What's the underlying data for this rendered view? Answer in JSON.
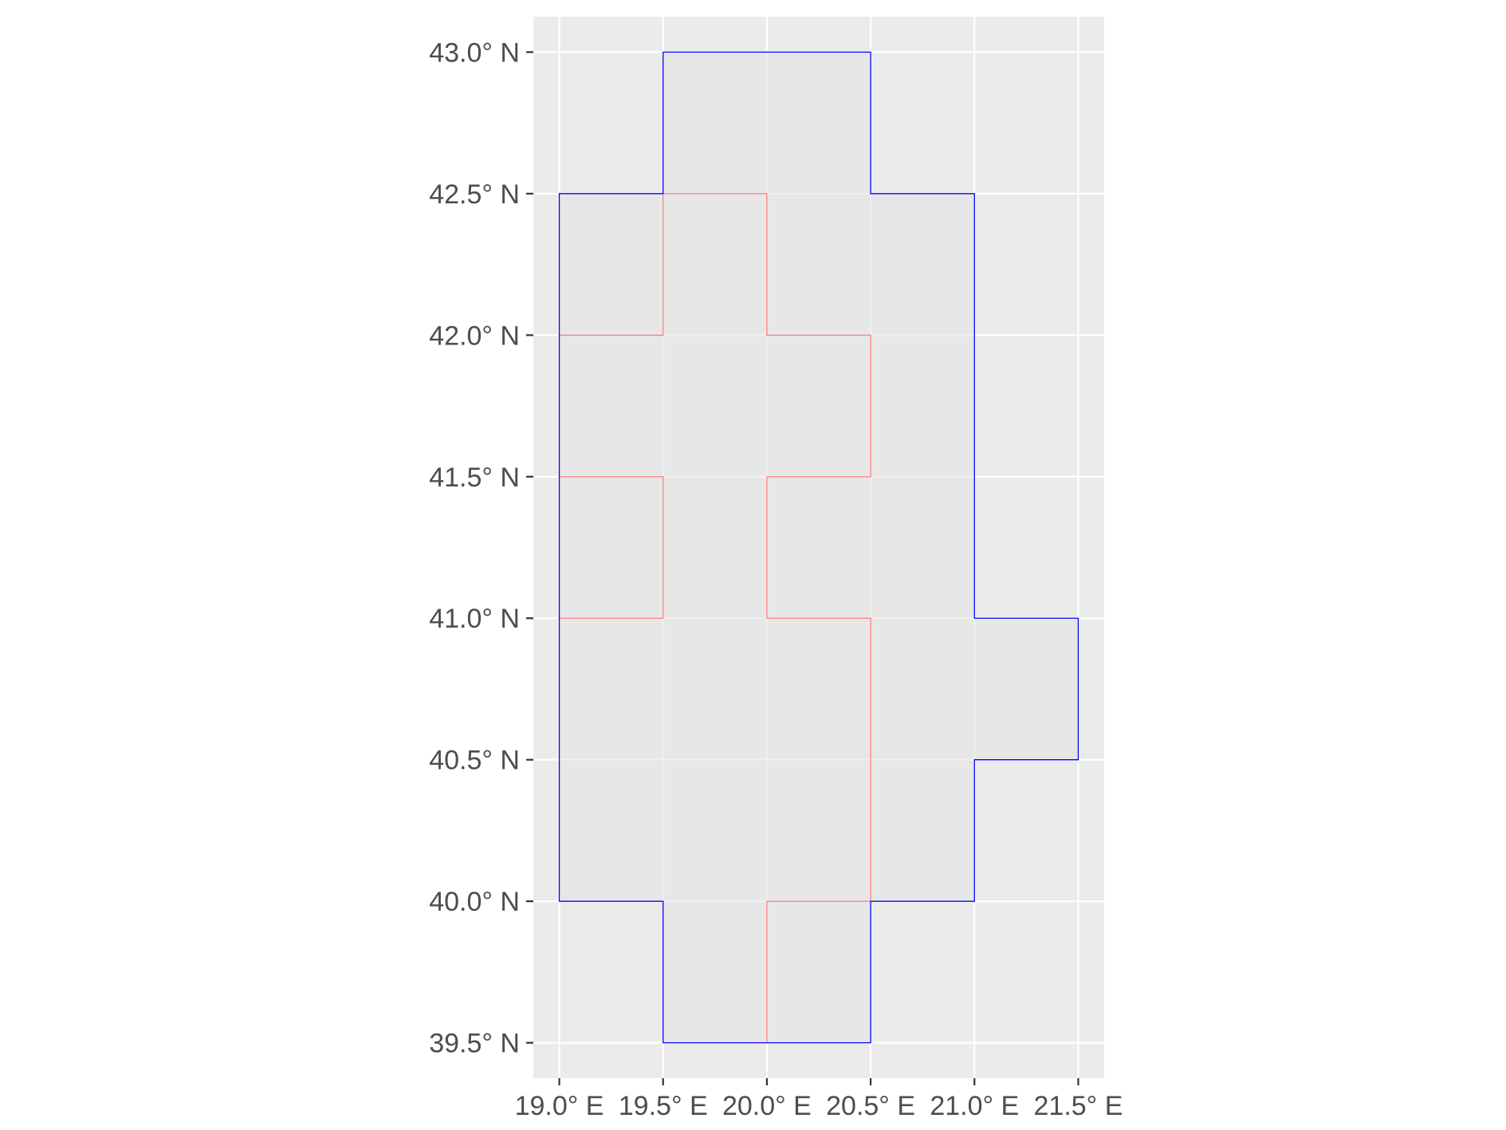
{
  "chart_data": {
    "type": "map",
    "crs_note": "geographic",
    "xlim": [
      18.875,
      21.625
    ],
    "ylim": [
      39.375,
      43.125
    ],
    "x_ticks": [
      {
        "value": 19.0,
        "label": "19.0° E"
      },
      {
        "value": 19.5,
        "label": "19.5° E"
      },
      {
        "value": 20.0,
        "label": "20.0° E"
      },
      {
        "value": 20.5,
        "label": "20.5° E"
      },
      {
        "value": 21.0,
        "label": "21.0° E"
      },
      {
        "value": 21.5,
        "label": "21.5° E"
      }
    ],
    "y_ticks": [
      {
        "value": 39.5,
        "label": "39.5° N"
      },
      {
        "value": 40.0,
        "label": "40.0° N"
      },
      {
        "value": 40.5,
        "label": "40.5° N"
      },
      {
        "value": 41.0,
        "label": "41.0° N"
      },
      {
        "value": 41.5,
        "label": "41.5° N"
      },
      {
        "value": 42.0,
        "label": "42.0° N"
      },
      {
        "value": 42.5,
        "label": "42.5° N"
      },
      {
        "value": 43.0,
        "label": "43.0° N"
      }
    ],
    "grid": true,
    "colors": {
      "panel_background": "#ebebeb",
      "grid_line": "#ffffff",
      "cell_fill": "#e5e5e5",
      "outer_outline": "#0000ff",
      "inner_outline": "#ff6a6a",
      "tick_label": "#4d4d4d",
      "tick_mark": "#333333"
    },
    "cells": [
      {
        "lon": 19.5,
        "lat": 42.5,
        "size": 0.5
      },
      {
        "lon": 20.0,
        "lat": 42.5,
        "size": 0.5
      },
      {
        "lon": 19.0,
        "lat": 42.0,
        "size": 0.5
      },
      {
        "lon": 19.5,
        "lat": 42.0,
        "size": 0.5
      },
      {
        "lon": 20.0,
        "lat": 42.0,
        "size": 0.5
      },
      {
        "lon": 20.5,
        "lat": 42.0,
        "size": 0.5
      },
      {
        "lon": 19.0,
        "lat": 41.5,
        "size": 0.5
      },
      {
        "lon": 19.5,
        "lat": 41.5,
        "size": 0.5
      },
      {
        "lon": 20.0,
        "lat": 41.5,
        "size": 0.5
      },
      {
        "lon": 20.5,
        "lat": 41.5,
        "size": 0.5
      },
      {
        "lon": 19.0,
        "lat": 41.0,
        "size": 0.5
      },
      {
        "lon": 19.5,
        "lat": 41.0,
        "size": 0.5
      },
      {
        "lon": 20.0,
        "lat": 41.0,
        "size": 0.5
      },
      {
        "lon": 20.5,
        "lat": 41.0,
        "size": 0.5
      },
      {
        "lon": 19.0,
        "lat": 40.5,
        "size": 0.5
      },
      {
        "lon": 19.5,
        "lat": 40.5,
        "size": 0.5
      },
      {
        "lon": 20.0,
        "lat": 40.5,
        "size": 0.5
      },
      {
        "lon": 20.5,
        "lat": 40.5,
        "size": 0.5
      },
      {
        "lon": 21.0,
        "lat": 40.5,
        "size": 0.5
      },
      {
        "lon": 19.0,
        "lat": 40.0,
        "size": 0.5
      },
      {
        "lon": 19.5,
        "lat": 40.0,
        "size": 0.5
      },
      {
        "lon": 20.0,
        "lat": 40.0,
        "size": 0.5
      },
      {
        "lon": 20.5,
        "lat": 40.0,
        "size": 0.5
      },
      {
        "lon": 19.5,
        "lat": 39.5,
        "size": 0.5
      },
      {
        "lon": 20.0,
        "lat": 39.5,
        "size": 0.5
      }
    ],
    "inner_boundaries": [
      [
        [
          19.5,
          42.5
        ],
        [
          20.0,
          42.5
        ],
        [
          20.0,
          42.0
        ],
        [
          20.5,
          42.0
        ],
        [
          20.5,
          41.5
        ],
        [
          20.0,
          41.5
        ],
        [
          20.0,
          41.0
        ],
        [
          20.5,
          41.0
        ],
        [
          20.5,
          40.0
        ],
        [
          20.0,
          40.0
        ],
        [
          20.0,
          39.5
        ]
      ],
      [
        [
          19.5,
          42.5
        ],
        [
          19.5,
          42.0
        ],
        [
          19.0,
          42.0
        ]
      ],
      [
        [
          19.0,
          41.5
        ],
        [
          19.5,
          41.5
        ],
        [
          19.5,
          41.0
        ],
        [
          19.0,
          41.0
        ]
      ]
    ],
    "outer_boundary": [
      [
        19.5,
        43.0
      ],
      [
        20.5,
        43.0
      ],
      [
        20.5,
        42.5
      ],
      [
        21.0,
        42.5
      ],
      [
        21.0,
        41.0
      ],
      [
        21.5,
        41.0
      ],
      [
        21.5,
        40.5
      ],
      [
        21.0,
        40.5
      ],
      [
        21.0,
        40.0
      ],
      [
        20.5,
        40.0
      ],
      [
        20.5,
        39.5
      ],
      [
        19.5,
        39.5
      ],
      [
        19.5,
        40.0
      ],
      [
        19.0,
        40.0
      ],
      [
        19.0,
        42.5
      ],
      [
        19.5,
        42.5
      ]
    ]
  }
}
